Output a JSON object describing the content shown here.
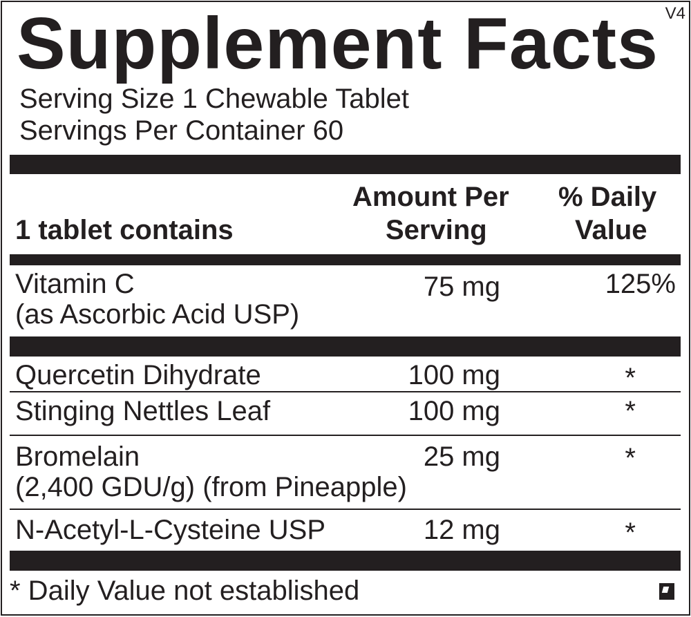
{
  "title": "Supplement Facts",
  "version": "V4",
  "serving_size": "Serving Size 1 Chewable Tablet",
  "servings_per_container": "Servings Per Container 60",
  "header": {
    "col1": "1 tablet contains",
    "col2_line1": "Amount Per",
    "col2_line2": "Serving",
    "col3_line1": "% Daily",
    "col3_line2": "Value"
  },
  "rows": [
    {
      "name": "Vitamin C",
      "sub": "(as Ascorbic Acid USP)",
      "amount": "75 mg",
      "dv": "125%"
    },
    {
      "name": "Quercetin Dihydrate",
      "amount": "100 mg",
      "dv": "*"
    },
    {
      "name": "Stinging Nettles Leaf",
      "amount": "100 mg",
      "dv": "*"
    },
    {
      "name": "Bromelain",
      "sub": "(2,400 GDU/g) (from Pineapple)",
      "amount": "25 mg",
      "dv": "*"
    },
    {
      "name": "N-Acetyl-L-Cysteine USP",
      "amount": "12 mg",
      "dv": "*"
    }
  ],
  "footnote": "* Daily Value not established",
  "colors": {
    "ink": "#231f20",
    "background": "#ffffff"
  }
}
